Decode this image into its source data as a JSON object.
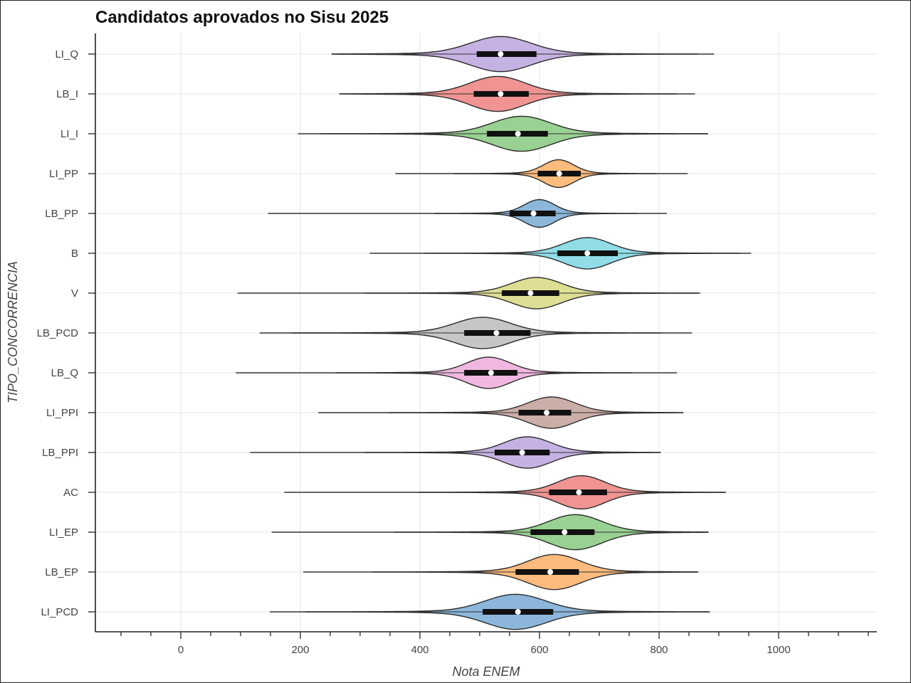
{
  "chart_data": {
    "type": "violin",
    "title": "Candidatos aprovados no Sisu 2025",
    "xlabel": "Nota ENEM",
    "ylabel": "TIPO_CONCORRENCIA",
    "xlim": [
      -120,
      1160
    ],
    "xticks": [
      0,
      200,
      400,
      600,
      800,
      1000
    ],
    "grid": true,
    "categories": [
      "LI_Q",
      "LB_I",
      "LI_I",
      "LI_PP",
      "LB_PP",
      "B",
      "V",
      "LB_PCD",
      "LB_Q",
      "LI_PPI",
      "LB_PPI",
      "AC",
      "LI_EP",
      "LB_EP",
      "LI_PCD"
    ],
    "series": [
      {
        "category": "LI_Q",
        "color": "#c3aee0",
        "min": 253,
        "q1": 495,
        "median": 535,
        "q3": 595,
        "max": 892,
        "mode": 535,
        "spread": 110,
        "peak": 0.95
      },
      {
        "category": "LB_I",
        "color": "#ee8e8c",
        "min": 266,
        "q1": 490,
        "median": 535,
        "q3": 582,
        "max": 860,
        "mode": 530,
        "spread": 100,
        "peak": 0.95
      },
      {
        "category": "LI_I",
        "color": "#94cf8c",
        "min": 196,
        "q1": 512,
        "median": 564,
        "q3": 614,
        "max": 882,
        "mode": 570,
        "spread": 105,
        "peak": 0.95
      },
      {
        "category": "LI_PP",
        "color": "#fdb877",
        "min": 359,
        "q1": 597,
        "median": 633,
        "q3": 669,
        "max": 848,
        "mode": 632,
        "spread": 55,
        "peak": 0.75
      },
      {
        "category": "LB_PP",
        "color": "#86b3d9",
        "min": 146,
        "q1": 550,
        "median": 590,
        "q3": 627,
        "max": 813,
        "mode": 600,
        "spread": 55,
        "peak": 0.75
      },
      {
        "category": "B",
        "color": "#8adbe7",
        "min": 316,
        "q1": 630,
        "median": 680,
        "q3": 731,
        "max": 954,
        "mode": 680,
        "spread": 85,
        "peak": 0.85
      },
      {
        "category": "V",
        "color": "#dcdd8e",
        "min": 95,
        "q1": 537,
        "median": 585,
        "q3": 633,
        "max": 869,
        "mode": 595,
        "spread": 90,
        "peak": 0.85
      },
      {
        "category": "LB_PCD",
        "color": "#c3c3c3",
        "min": 132,
        "q1": 474,
        "median": 528,
        "q3": 585,
        "max": 855,
        "mode": 505,
        "spread": 100,
        "peak": 0.85
      },
      {
        "category": "LB_Q",
        "color": "#efb4de",
        "min": 92,
        "q1": 474,
        "median": 519,
        "q3": 563,
        "max": 830,
        "mode": 515,
        "spread": 80,
        "peak": 0.85
      },
      {
        "category": "LI_PPI",
        "color": "#c8aaa2",
        "min": 230,
        "q1": 565,
        "median": 612,
        "q3": 653,
        "max": 840,
        "mode": 620,
        "spread": 85,
        "peak": 0.85
      },
      {
        "category": "LB_PPI",
        "color": "#c3aee0",
        "min": 116,
        "q1": 525,
        "median": 571,
        "q3": 617,
        "max": 802,
        "mode": 580,
        "spread": 85,
        "peak": 0.85
      },
      {
        "category": "AC",
        "color": "#ee8e8c",
        "min": 173,
        "q1": 616,
        "median": 666,
        "q3": 713,
        "max": 911,
        "mode": 670,
        "spread": 85,
        "peak": 0.9
      },
      {
        "category": "LI_EP",
        "color": "#94cf8c",
        "min": 152,
        "q1": 585,
        "median": 642,
        "q3": 692,
        "max": 882,
        "mode": 660,
        "spread": 95,
        "peak": 0.95
      },
      {
        "category": "LB_EP",
        "color": "#fdb877",
        "min": 205,
        "q1": 560,
        "median": 618,
        "q3": 666,
        "max": 865,
        "mode": 625,
        "spread": 95,
        "peak": 0.95
      },
      {
        "category": "LI_PCD",
        "color": "#86b3d9",
        "min": 149,
        "q1": 505,
        "median": 564,
        "q3": 623,
        "max": 884,
        "mode": 560,
        "spread": 110,
        "peak": 0.95
      }
    ]
  }
}
